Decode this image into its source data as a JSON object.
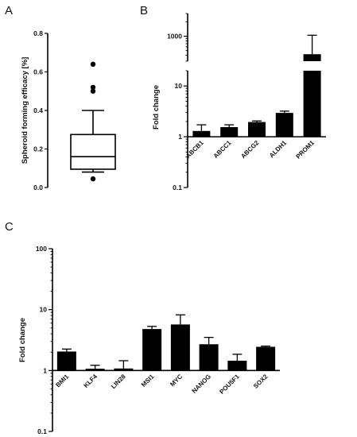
{
  "panels": {
    "a": "A",
    "b": "B",
    "c": "C"
  },
  "chart_data": [
    {
      "panel": "A",
      "type": "box",
      "ylabel": "Spheroid forming efficacy [%]",
      "ylim": [
        0,
        0.8
      ],
      "yticks": [
        0.0,
        0.2,
        0.4,
        0.6,
        0.8
      ],
      "ytick_labels": [
        "0.0",
        "0.2",
        "0.4",
        "0.6",
        "0.8"
      ],
      "box": {
        "whisker_low": 0.08,
        "q1": 0.095,
        "median": 0.16,
        "q3": 0.275,
        "whisker_high": 0.4
      },
      "outliers": [
        0.64,
        0.52,
        0.5,
        0.045
      ],
      "grid": false
    },
    {
      "panel": "B",
      "type": "bar",
      "ylabel": "Fold change",
      "yscale": "log",
      "axis_break": true,
      "ylim": [
        0.1,
        3000
      ],
      "yticks": [
        0.1,
        1,
        10,
        1000
      ],
      "ytick_labels": [
        "0.1",
        "1",
        "10",
        "1000"
      ],
      "categories": [
        "ABCB1",
        "ABCC1",
        "ABCG2",
        "ALDH1",
        "PROM1"
      ],
      "values": [
        1.3,
        1.55,
        1.95,
        2.95,
        420
      ],
      "errors_upper": [
        1.72,
        1.72,
        2.05,
        3.2,
        1050
      ],
      "grid": false
    },
    {
      "panel": "C",
      "type": "bar",
      "ylabel": "Fold change",
      "yscale": "log",
      "ylim": [
        0.1,
        100
      ],
      "yticks": [
        0.1,
        1,
        10,
        100
      ],
      "ytick_labels": [
        "0.1",
        "1",
        "10",
        "100"
      ],
      "categories": [
        "BMI1",
        "KLF4",
        "LIN28",
        "MSI1",
        "MYC",
        "NANOG",
        "POU5F1",
        "SOX2"
      ],
      "values": [
        2.05,
        1.07,
        1.08,
        4.8,
        5.7,
        2.7,
        1.45,
        2.45
      ],
      "errors_upper": [
        2.25,
        1.22,
        1.45,
        5.3,
        8.2,
        3.5,
        1.85,
        2.52
      ],
      "grid": false
    }
  ]
}
